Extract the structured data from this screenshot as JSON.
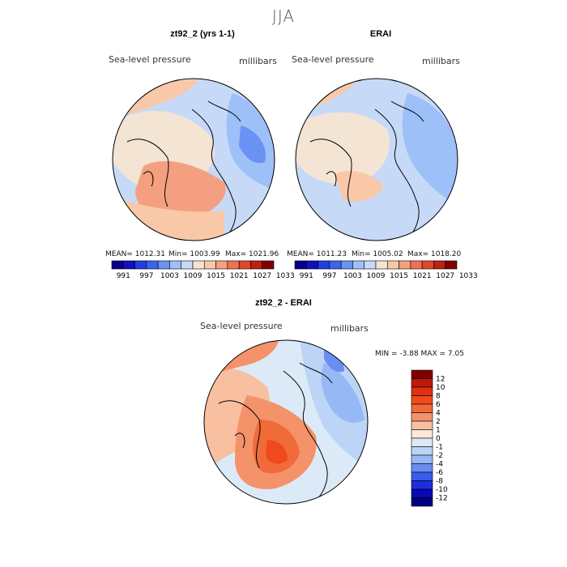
{
  "season": "JJA",
  "panels": [
    {
      "title": "zt92_2 (yrs 1-1)",
      "variable_label": "Sea-level pressure",
      "units_label": "millibars",
      "stats": {
        "mean": "MEAN= 1012.31",
        "min": "Min= 1003.99",
        "max": "Max= 1021.96"
      }
    },
    {
      "title": "ERAI",
      "variable_label": "Sea-level pressure",
      "units_label": "millibars",
      "stats": {
        "mean": "MEAN= 1011.23",
        "min": "Min= 1005.02",
        "max": "Max= 1018.20"
      }
    }
  ],
  "diff_panel": {
    "title": "zt92_2 - ERAI",
    "variable_label": "Sea-level pressure",
    "units_label": "millibars",
    "minmax": "MIN =  -3.88 MAX =   7.05"
  },
  "colorbar_abs": {
    "labels": [
      "991",
      "997",
      "1003",
      "1009",
      "1015",
      "1021",
      "1027",
      "1033"
    ],
    "colors": [
      "#08008a",
      "#1010c0",
      "#2040e0",
      "#3a64f0",
      "#6a92f4",
      "#9ec0f8",
      "#c6daf8",
      "#f4e4d4",
      "#f8c8a8",
      "#f4a080",
      "#f07050",
      "#e04828",
      "#c02010",
      "#800000"
    ]
  },
  "colorbar_diff": {
    "labels": [
      "12",
      "10",
      "8",
      "6",
      "4",
      "2",
      "1",
      "0",
      "-1",
      "-2",
      "-4",
      "-6",
      "-8",
      "-10",
      "-12"
    ],
    "colors": [
      "#800000",
      "#c01808",
      "#e03010",
      "#f04a1c",
      "#f06a3a",
      "#f4926a",
      "#f8c0a0",
      "#fce8d8",
      "#dceaf8",
      "#bcd4f6",
      "#96b8f4",
      "#6a8ef0",
      "#3a5cec",
      "#1a2ee0",
      "#0808b4",
      "#000080"
    ]
  },
  "map_colors": {
    "deep_blue": "#3a64f0",
    "mid_blue": "#9ec0f8",
    "light_blue": "#c6daf8",
    "neutral": "#f4e4d4",
    "light_red": "#f8c8a8",
    "mid_red": "#f4a080",
    "strong_red": "#f07050"
  }
}
